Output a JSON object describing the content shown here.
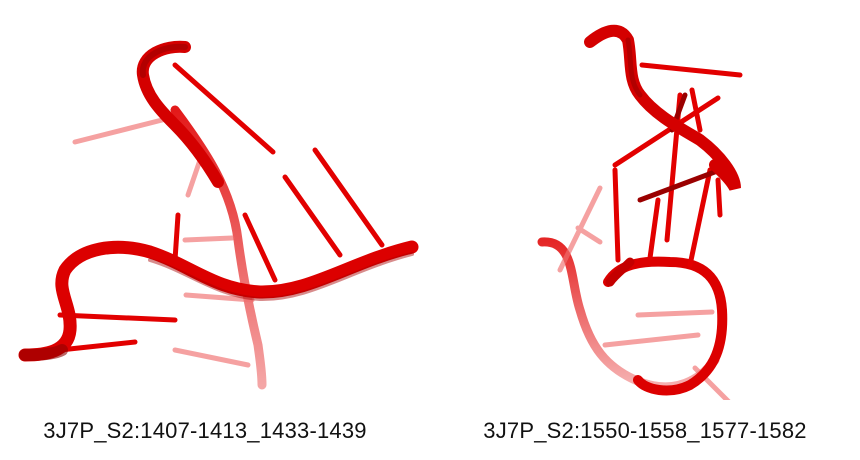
{
  "colors": {
    "backbone": "#e00000",
    "backbone_dark": "#8f0000",
    "faded": "#f08a8a",
    "background": "#ffffff",
    "text": "#111111"
  },
  "panels": [
    {
      "caption": "3J7P_S2:1407-1413_1433-1439",
      "structure_icon": "rna-helix-backbone"
    },
    {
      "caption": "3J7P_S2:1550-1558_1577-1582",
      "structure_icon": "rna-hairpin-backbone"
    }
  ]
}
